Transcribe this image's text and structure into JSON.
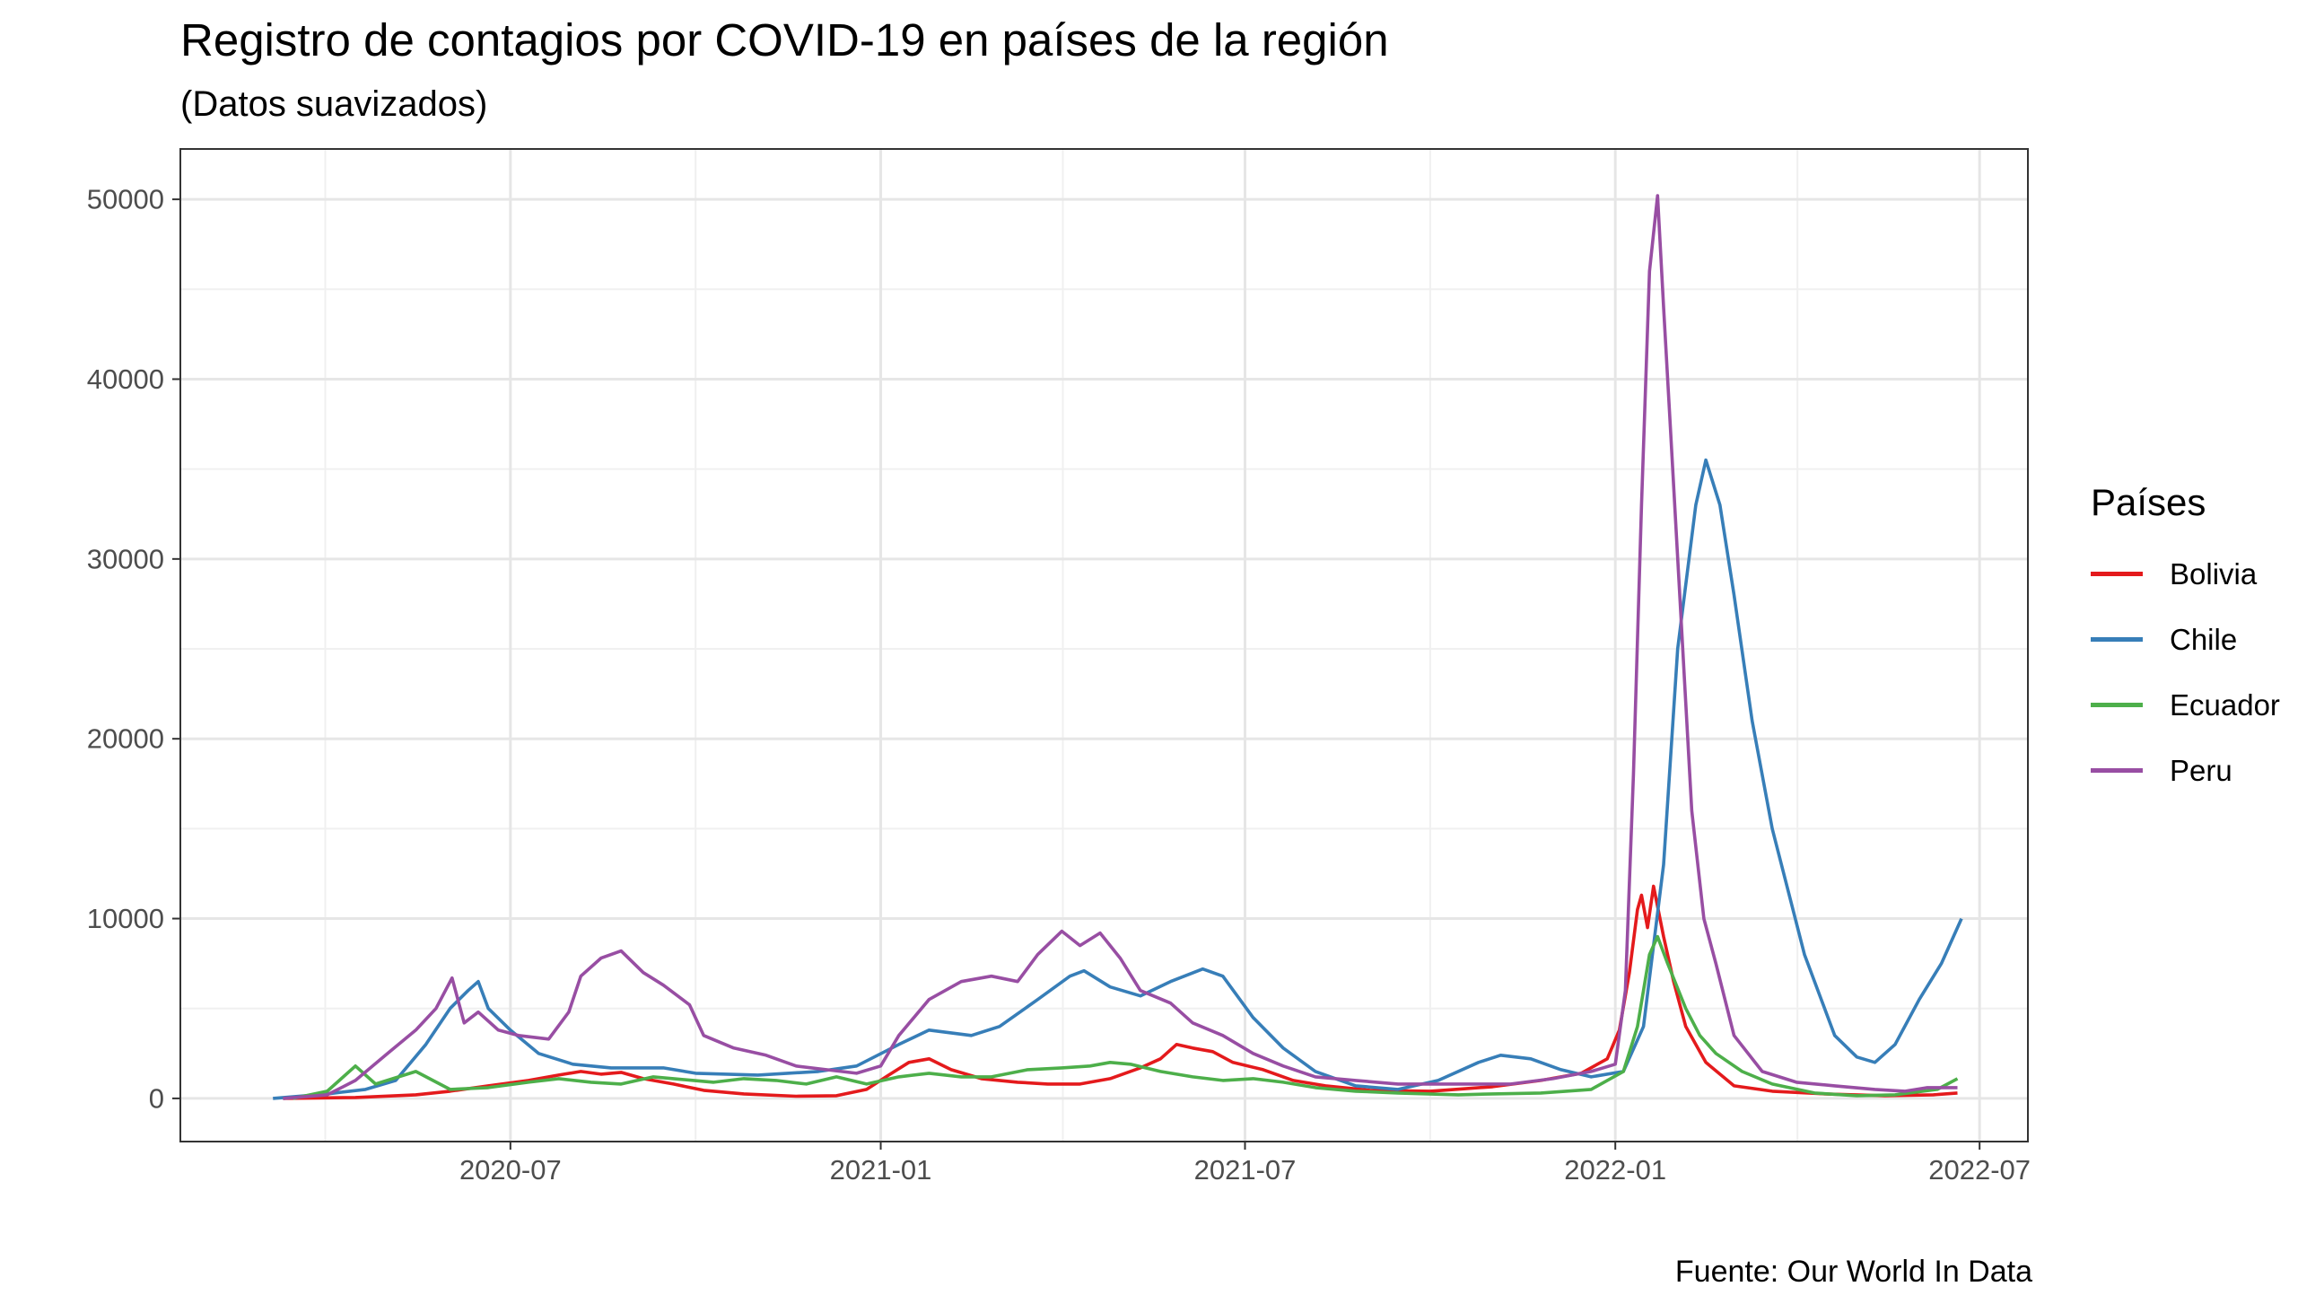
{
  "chart_data": {
    "type": "line",
    "title": "Registro de contagios por COVID-19 en países de la región",
    "subtitle": "(Datos suavizados)",
    "caption": "Fuente: Our World In Data",
    "legend_title": "Países",
    "legend_position": "right",
    "grid": true,
    "ylim": [
      -2400,
      52800
    ],
    "xlim": [
      "2020-01-19",
      "2022-07-25"
    ],
    "x_ticks": [
      "2020-07",
      "2021-01",
      "2021-07",
      "2022-01",
      "2022-07"
    ],
    "y_ticks": [
      "0",
      "10000",
      "20000",
      "30000",
      "40000",
      "50000"
    ],
    "series": [
      {
        "name": "Bolivia",
        "color": "#e41a1c",
        "points": [
          [
            "2020-03-10",
            0
          ],
          [
            "2020-04-15",
            50
          ],
          [
            "2020-05-15",
            200
          ],
          [
            "2020-06-01",
            400
          ],
          [
            "2020-06-20",
            700
          ],
          [
            "2020-07-10",
            1000
          ],
          [
            "2020-07-25",
            1300
          ],
          [
            "2020-08-05",
            1500
          ],
          [
            "2020-08-15",
            1350
          ],
          [
            "2020-08-25",
            1450
          ],
          [
            "2020-09-05",
            1100
          ],
          [
            "2020-09-20",
            800
          ],
          [
            "2020-10-05",
            450
          ],
          [
            "2020-10-25",
            250
          ],
          [
            "2020-11-20",
            120
          ],
          [
            "2020-12-10",
            150
          ],
          [
            "2020-12-25",
            500
          ],
          [
            "2021-01-05",
            1300
          ],
          [
            "2021-01-15",
            2000
          ],
          [
            "2021-01-25",
            2200
          ],
          [
            "2021-02-05",
            1600
          ],
          [
            "2021-02-20",
            1100
          ],
          [
            "2021-03-10",
            900
          ],
          [
            "2021-03-25",
            800
          ],
          [
            "2021-04-10",
            800
          ],
          [
            "2021-04-25",
            1100
          ],
          [
            "2021-05-10",
            1700
          ],
          [
            "2021-05-20",
            2200
          ],
          [
            "2021-05-28",
            3000
          ],
          [
            "2021-06-05",
            2800
          ],
          [
            "2021-06-15",
            2600
          ],
          [
            "2021-06-25",
            2000
          ],
          [
            "2021-07-10",
            1600
          ],
          [
            "2021-07-25",
            1000
          ],
          [
            "2021-08-10",
            700
          ],
          [
            "2021-09-01",
            450
          ],
          [
            "2021-10-01",
            400
          ],
          [
            "2021-11-01",
            650
          ],
          [
            "2021-11-25",
            1000
          ],
          [
            "2021-12-15",
            1400
          ],
          [
            "2021-12-28",
            2200
          ],
          [
            "2022-01-03",
            3800
          ],
          [
            "2022-01-08",
            7000
          ],
          [
            "2022-01-12",
            10500
          ],
          [
            "2022-01-14",
            11300
          ],
          [
            "2022-01-17",
            9500
          ],
          [
            "2022-01-20",
            11800
          ],
          [
            "2022-01-25",
            9000
          ],
          [
            "2022-01-30",
            6500
          ],
          [
            "2022-02-05",
            4000
          ],
          [
            "2022-02-15",
            2000
          ],
          [
            "2022-03-01",
            700
          ],
          [
            "2022-03-20",
            400
          ],
          [
            "2022-04-15",
            250
          ],
          [
            "2022-05-15",
            150
          ],
          [
            "2022-06-08",
            200
          ],
          [
            "2022-06-20",
            300
          ]
        ]
      },
      {
        "name": "Chile",
        "color": "#377eb8",
        "points": [
          [
            "2020-03-05",
            0
          ],
          [
            "2020-04-01",
            250
          ],
          [
            "2020-04-20",
            500
          ],
          [
            "2020-05-05",
            1000
          ],
          [
            "2020-05-20",
            3000
          ],
          [
            "2020-06-01",
            5000
          ],
          [
            "2020-06-10",
            6000
          ],
          [
            "2020-06-15",
            6500
          ],
          [
            "2020-06-20",
            5000
          ],
          [
            "2020-07-01",
            3800
          ],
          [
            "2020-07-15",
            2500
          ],
          [
            "2020-08-01",
            1900
          ],
          [
            "2020-08-20",
            1700
          ],
          [
            "2020-09-15",
            1700
          ],
          [
            "2020-10-01",
            1400
          ],
          [
            "2020-11-01",
            1300
          ],
          [
            "2020-12-01",
            1500
          ],
          [
            "2020-12-20",
            1800
          ],
          [
            "2021-01-10",
            3000
          ],
          [
            "2021-01-25",
            3800
          ],
          [
            "2021-02-15",
            3500
          ],
          [
            "2021-03-01",
            4000
          ],
          [
            "2021-03-20",
            5500
          ],
          [
            "2021-04-05",
            6800
          ],
          [
            "2021-04-12",
            7100
          ],
          [
            "2021-04-25",
            6200
          ],
          [
            "2021-05-10",
            5700
          ],
          [
            "2021-05-25",
            6500
          ],
          [
            "2021-06-10",
            7200
          ],
          [
            "2021-06-20",
            6800
          ],
          [
            "2021-07-05",
            4500
          ],
          [
            "2021-07-20",
            2800
          ],
          [
            "2021-08-05",
            1500
          ],
          [
            "2021-08-25",
            700
          ],
          [
            "2021-09-15",
            500
          ],
          [
            "2021-10-05",
            1000
          ],
          [
            "2021-10-25",
            2000
          ],
          [
            "2021-11-05",
            2400
          ],
          [
            "2021-11-20",
            2200
          ],
          [
            "2021-12-05",
            1600
          ],
          [
            "2021-12-20",
            1200
          ],
          [
            "2022-01-05",
            1500
          ],
          [
            "2022-01-15",
            4000
          ],
          [
            "2022-01-25",
            13000
          ],
          [
            "2022-02-01",
            25000
          ],
          [
            "2022-02-10",
            33000
          ],
          [
            "2022-02-15",
            35500
          ],
          [
            "2022-02-22",
            33000
          ],
          [
            "2022-03-01",
            28000
          ],
          [
            "2022-03-10",
            21000
          ],
          [
            "2022-03-20",
            15000
          ],
          [
            "2022-04-05",
            8000
          ],
          [
            "2022-04-20",
            3500
          ],
          [
            "2022-05-01",
            2300
          ],
          [
            "2022-05-10",
            2000
          ],
          [
            "2022-05-20",
            3000
          ],
          [
            "2022-06-01",
            5500
          ],
          [
            "2022-06-12",
            7500
          ],
          [
            "2022-06-22",
            10000
          ]
        ]
      },
      {
        "name": "Ecuador",
        "color": "#4daf4a",
        "points": [
          [
            "2020-03-15",
            0
          ],
          [
            "2020-04-01",
            400
          ],
          [
            "2020-04-15",
            1800
          ],
          [
            "2020-04-25",
            800
          ],
          [
            "2020-05-15",
            1500
          ],
          [
            "2020-06-01",
            500
          ],
          [
            "2020-06-20",
            600
          ],
          [
            "2020-07-10",
            900
          ],
          [
            "2020-07-25",
            1100
          ],
          [
            "2020-08-10",
            900
          ],
          [
            "2020-08-25",
            800
          ],
          [
            "2020-09-10",
            1200
          ],
          [
            "2020-09-20",
            1100
          ],
          [
            "2020-10-10",
            900
          ],
          [
            "2020-10-25",
            1100
          ],
          [
            "2020-11-10",
            1000
          ],
          [
            "2020-11-25",
            800
          ],
          [
            "2020-12-10",
            1200
          ],
          [
            "2020-12-25",
            800
          ],
          [
            "2021-01-10",
            1200
          ],
          [
            "2021-01-25",
            1400
          ],
          [
            "2021-02-10",
            1200
          ],
          [
            "2021-02-25",
            1200
          ],
          [
            "2021-03-15",
            1600
          ],
          [
            "2021-04-01",
            1700
          ],
          [
            "2021-04-15",
            1800
          ],
          [
            "2021-04-25",
            2000
          ],
          [
            "2021-05-05",
            1900
          ],
          [
            "2021-05-20",
            1500
          ],
          [
            "2021-06-05",
            1200
          ],
          [
            "2021-06-20",
            1000
          ],
          [
            "2021-07-05",
            1100
          ],
          [
            "2021-07-20",
            900
          ],
          [
            "2021-08-05",
            600
          ],
          [
            "2021-08-25",
            400
          ],
          [
            "2021-09-15",
            300
          ],
          [
            "2021-10-15",
            200
          ],
          [
            "2021-11-01",
            250
          ],
          [
            "2021-11-25",
            300
          ],
          [
            "2021-12-20",
            500
          ],
          [
            "2022-01-05",
            1500
          ],
          [
            "2022-01-12",
            4000
          ],
          [
            "2022-01-18",
            8000
          ],
          [
            "2022-01-22",
            9000
          ],
          [
            "2022-01-27",
            7500
          ],
          [
            "2022-02-05",
            5000
          ],
          [
            "2022-02-12",
            3500
          ],
          [
            "2022-02-20",
            2500
          ],
          [
            "2022-03-05",
            1500
          ],
          [
            "2022-03-20",
            800
          ],
          [
            "2022-04-10",
            300
          ],
          [
            "2022-05-01",
            150
          ],
          [
            "2022-05-20",
            200
          ],
          [
            "2022-06-10",
            500
          ],
          [
            "2022-06-20",
            1100
          ]
        ]
      },
      {
        "name": "Peru",
        "color": "#984ea3",
        "points": [
          [
            "2020-03-10",
            0
          ],
          [
            "2020-04-01",
            200
          ],
          [
            "2020-04-15",
            1000
          ],
          [
            "2020-05-01",
            2500
          ],
          [
            "2020-05-15",
            3800
          ],
          [
            "2020-05-25",
            5000
          ],
          [
            "2020-06-02",
            6700
          ],
          [
            "2020-06-08",
            4200
          ],
          [
            "2020-06-15",
            4800
          ],
          [
            "2020-06-25",
            3800
          ],
          [
            "2020-07-05",
            3500
          ],
          [
            "2020-07-20",
            3300
          ],
          [
            "2020-07-30",
            4800
          ],
          [
            "2020-08-05",
            6800
          ],
          [
            "2020-08-15",
            7800
          ],
          [
            "2020-08-25",
            8200
          ],
          [
            "2020-09-05",
            7000
          ],
          [
            "2020-09-15",
            6300
          ],
          [
            "2020-09-28",
            5200
          ],
          [
            "2020-10-05",
            3500
          ],
          [
            "2020-10-20",
            2800
          ],
          [
            "2020-11-05",
            2400
          ],
          [
            "2020-11-20",
            1800
          ],
          [
            "2020-12-05",
            1600
          ],
          [
            "2020-12-20",
            1400
          ],
          [
            "2021-01-01",
            1800
          ],
          [
            "2021-01-10",
            3500
          ],
          [
            "2021-01-25",
            5500
          ],
          [
            "2021-02-10",
            6500
          ],
          [
            "2021-02-25",
            6800
          ],
          [
            "2021-03-10",
            6500
          ],
          [
            "2021-03-20",
            8000
          ],
          [
            "2021-04-01",
            9300
          ],
          [
            "2021-04-10",
            8500
          ],
          [
            "2021-04-20",
            9200
          ],
          [
            "2021-04-30",
            7800
          ],
          [
            "2021-05-10",
            6000
          ],
          [
            "2021-05-25",
            5300
          ],
          [
            "2021-06-05",
            4200
          ],
          [
            "2021-06-20",
            3500
          ],
          [
            "2021-07-05",
            2500
          ],
          [
            "2021-07-20",
            1800
          ],
          [
            "2021-08-05",
            1200
          ],
          [
            "2021-08-25",
            1000
          ],
          [
            "2021-09-15",
            800
          ],
          [
            "2021-10-15",
            800
          ],
          [
            "2021-11-10",
            800
          ],
          [
            "2021-12-01",
            1100
          ],
          [
            "2021-12-20",
            1500
          ],
          [
            "2022-01-01",
            1900
          ],
          [
            "2022-01-06",
            6000
          ],
          [
            "2022-01-10",
            18000
          ],
          [
            "2022-01-14",
            33000
          ],
          [
            "2022-01-18",
            46000
          ],
          [
            "2022-01-22",
            50200
          ],
          [
            "2022-01-25",
            44000
          ],
          [
            "2022-01-28",
            38000
          ],
          [
            "2022-02-02",
            28000
          ],
          [
            "2022-02-08",
            16000
          ],
          [
            "2022-02-14",
            10000
          ],
          [
            "2022-02-20",
            7500
          ],
          [
            "2022-03-01",
            3500
          ],
          [
            "2022-03-15",
            1500
          ],
          [
            "2022-04-01",
            900
          ],
          [
            "2022-04-20",
            700
          ],
          [
            "2022-05-10",
            500
          ],
          [
            "2022-05-25",
            400
          ],
          [
            "2022-06-05",
            600
          ],
          [
            "2022-06-20",
            600
          ]
        ]
      }
    ]
  }
}
